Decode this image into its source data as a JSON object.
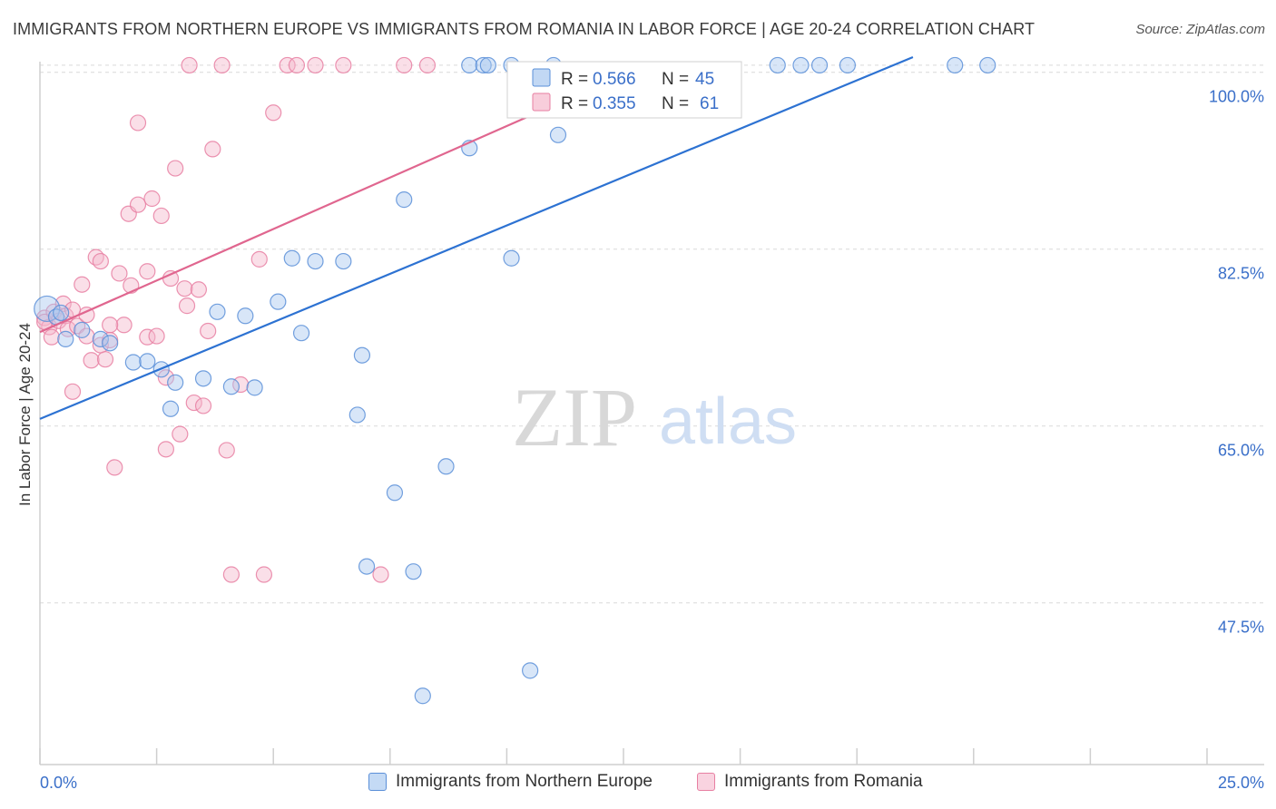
{
  "header": {
    "title": "IMMIGRANTS FROM NORTHERN EUROPE VS IMMIGRANTS FROM ROMANIA IN LABOR FORCE | AGE 20-24 CORRELATION CHART",
    "source": "Source: ZipAtlas.com"
  },
  "watermark": {
    "zip": "ZIP",
    "atlas": "atlas"
  },
  "colors": {
    "blue_fill": "#a8c8f0",
    "blue_stroke": "#5a8fd8",
    "blue_line": "#2d72d2",
    "pink_fill": "#f5b8cc",
    "pink_stroke": "#e77fa2",
    "pink_line": "#e0668f",
    "axis_label": "#3a6fc9",
    "grid": "#d9d9d9"
  },
  "chart_data": {
    "type": "scatter",
    "title": "IMMIGRANTS FROM NORTHERN EUROPE VS IMMIGRANTS FROM ROMANIA IN LABOR FORCE | AGE 20-24 CORRELATION CHART",
    "xlabel": "",
    "ylabel": "In Labor Force | Age 20-24",
    "xlim": [
      0,
      25
    ],
    "ylim": [
      31.5,
      101.5
    ],
    "x_tick_labels": [
      "0.0%",
      "25.0%"
    ],
    "y_ticks": [
      47.5,
      65.0,
      82.5,
      100.0
    ],
    "y_tick_labels": [
      "47.5%",
      "65.0%",
      "82.5%",
      "100.0%"
    ],
    "grid": true,
    "legend": {
      "position": "top-center",
      "entries": [
        {
          "r_label": "R = ",
          "r_value": "0.566",
          "n_label": "N = ",
          "n_value": "45"
        },
        {
          "r_label": "R = ",
          "r_value": "0.355",
          "n_label": "N = ",
          "n_value": "61"
        }
      ]
    },
    "series": [
      {
        "name": "Immigrants from Northern Europe",
        "color": "#5a8fd8",
        "trend": {
          "x": [
            0.0,
            18.7
          ],
          "y": [
            65.7,
            101.5
          ]
        },
        "points": [
          {
            "x": 0.15,
            "y": 76.6,
            "big": true
          },
          {
            "x": 0.35,
            "y": 75.8
          },
          {
            "x": 0.45,
            "y": 76.2
          },
          {
            "x": 0.55,
            "y": 73.6
          },
          {
            "x": 0.9,
            "y": 74.5
          },
          {
            "x": 1.3,
            "y": 73.6
          },
          {
            "x": 1.5,
            "y": 73.2
          },
          {
            "x": 2.0,
            "y": 71.3
          },
          {
            "x": 2.3,
            "y": 71.4
          },
          {
            "x": 2.6,
            "y": 70.6
          },
          {
            "x": 2.9,
            "y": 69.3
          },
          {
            "x": 2.8,
            "y": 66.7
          },
          {
            "x": 3.5,
            "y": 69.7
          },
          {
            "x": 3.8,
            "y": 76.3
          },
          {
            "x": 4.1,
            "y": 68.9
          },
          {
            "x": 4.4,
            "y": 75.9
          },
          {
            "x": 4.6,
            "y": 68.8
          },
          {
            "x": 5.1,
            "y": 77.3
          },
          {
            "x": 5.4,
            "y": 81.6
          },
          {
            "x": 5.6,
            "y": 74.2
          },
          {
            "x": 5.9,
            "y": 81.3
          },
          {
            "x": 6.5,
            "y": 81.3
          },
          {
            "x": 6.9,
            "y": 72.0
          },
          {
            "x": 6.8,
            "y": 66.1
          },
          {
            "x": 7.0,
            "y": 51.1
          },
          {
            "x": 7.6,
            "y": 58.4
          },
          {
            "x": 7.8,
            "y": 87.4
          },
          {
            "x": 8.0,
            "y": 50.6
          },
          {
            "x": 8.2,
            "y": 38.3
          },
          {
            "x": 8.7,
            "y": 61.0
          },
          {
            "x": 9.2,
            "y": 100.7
          },
          {
            "x": 9.2,
            "y": 92.5
          },
          {
            "x": 9.5,
            "y": 100.7
          },
          {
            "x": 9.6,
            "y": 100.7
          },
          {
            "x": 10.1,
            "y": 100.7
          },
          {
            "x": 10.1,
            "y": 81.6
          },
          {
            "x": 10.5,
            "y": 40.8
          },
          {
            "x": 11.0,
            "y": 100.7
          },
          {
            "x": 11.1,
            "y": 93.8
          },
          {
            "x": 15.8,
            "y": 100.7
          },
          {
            "x": 16.3,
            "y": 100.7
          },
          {
            "x": 16.7,
            "y": 100.7
          },
          {
            "x": 17.3,
            "y": 100.7
          },
          {
            "x": 19.6,
            "y": 100.7
          },
          {
            "x": 20.3,
            "y": 100.7
          }
        ]
      },
      {
        "name": "Immigrants from Romania",
        "color": "#e77fa2",
        "trend": {
          "x": [
            0.0,
            13.1
          ],
          "y": [
            74.3,
            101.0
          ]
        },
        "points": [
          {
            "x": 0.1,
            "y": 75.7
          },
          {
            "x": 0.2,
            "y": 74.8
          },
          {
            "x": 0.25,
            "y": 73.8
          },
          {
            "x": 0.3,
            "y": 76.3
          },
          {
            "x": 0.4,
            "y": 75.4
          },
          {
            "x": 0.5,
            "y": 77.1
          },
          {
            "x": 0.55,
            "y": 75.9
          },
          {
            "x": 0.6,
            "y": 74.6
          },
          {
            "x": 0.7,
            "y": 68.4
          },
          {
            "x": 0.8,
            "y": 74.9
          },
          {
            "x": 0.9,
            "y": 79.0
          },
          {
            "x": 1.0,
            "y": 76.0
          },
          {
            "x": 1.0,
            "y": 73.9
          },
          {
            "x": 1.1,
            "y": 71.5
          },
          {
            "x": 1.2,
            "y": 81.7
          },
          {
            "x": 1.3,
            "y": 73.0
          },
          {
            "x": 1.3,
            "y": 81.3
          },
          {
            "x": 1.4,
            "y": 71.6
          },
          {
            "x": 1.5,
            "y": 73.5
          },
          {
            "x": 1.6,
            "y": 60.9
          },
          {
            "x": 1.7,
            "y": 80.1
          },
          {
            "x": 1.8,
            "y": 75.0
          },
          {
            "x": 1.9,
            "y": 86.0
          },
          {
            "x": 1.95,
            "y": 78.9
          },
          {
            "x": 2.1,
            "y": 86.9
          },
          {
            "x": 2.1,
            "y": 95.0
          },
          {
            "x": 2.3,
            "y": 80.3
          },
          {
            "x": 2.3,
            "y": 73.8
          },
          {
            "x": 2.4,
            "y": 87.5
          },
          {
            "x": 2.5,
            "y": 73.9
          },
          {
            "x": 2.6,
            "y": 85.8
          },
          {
            "x": 2.7,
            "y": 62.7
          },
          {
            "x": 2.7,
            "y": 69.8
          },
          {
            "x": 2.8,
            "y": 79.6
          },
          {
            "x": 2.9,
            "y": 90.5
          },
          {
            "x": 3.0,
            "y": 64.2
          },
          {
            "x": 3.1,
            "y": 78.6
          },
          {
            "x": 3.15,
            "y": 76.9
          },
          {
            "x": 3.2,
            "y": 100.7
          },
          {
            "x": 3.3,
            "y": 67.3
          },
          {
            "x": 3.4,
            "y": 78.5
          },
          {
            "x": 3.5,
            "y": 67.0
          },
          {
            "x": 3.6,
            "y": 74.4
          },
          {
            "x": 3.7,
            "y": 92.4
          },
          {
            "x": 3.9,
            "y": 100.7
          },
          {
            "x": 4.0,
            "y": 62.6
          },
          {
            "x": 4.1,
            "y": 50.3
          },
          {
            "x": 4.3,
            "y": 69.1
          },
          {
            "x": 4.7,
            "y": 81.5
          },
          {
            "x": 4.8,
            "y": 50.3
          },
          {
            "x": 5.0,
            "y": 96.0
          },
          {
            "x": 5.3,
            "y": 100.7
          },
          {
            "x": 5.5,
            "y": 100.7
          },
          {
            "x": 5.9,
            "y": 100.7
          },
          {
            "x": 6.5,
            "y": 100.7
          },
          {
            "x": 7.3,
            "y": 50.3
          },
          {
            "x": 7.8,
            "y": 100.7
          },
          {
            "x": 8.3,
            "y": 100.7
          },
          {
            "x": 0.1,
            "y": 75.3
          },
          {
            "x": 0.7,
            "y": 76.5
          },
          {
            "x": 1.5,
            "y": 75.0
          }
        ]
      }
    ]
  }
}
